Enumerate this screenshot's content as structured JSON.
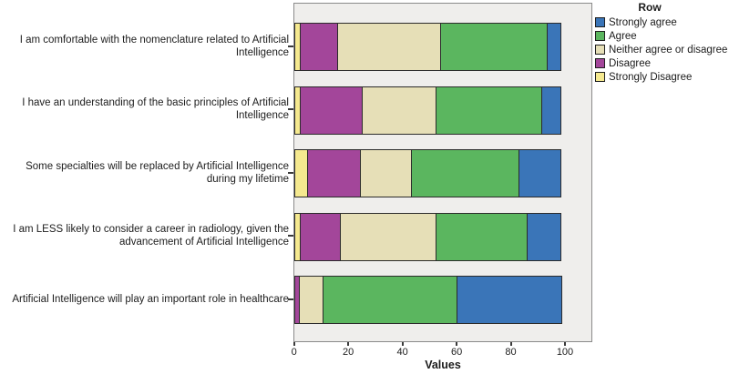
{
  "legend": {
    "title": "Row",
    "items": [
      {
        "label": "Strongly agree",
        "color": "#3a75b8"
      },
      {
        "label": "Agree",
        "color": "#5bb65f"
      },
      {
        "label": "Neither agree or disagree",
        "color": "#e6dfb7"
      },
      {
        "label": "Disagree",
        "color": "#a3469a"
      },
      {
        "label": "Strongly Disagree",
        "color": "#f5e98f"
      }
    ]
  },
  "axis": {
    "xlabel": "Values"
  },
  "chart_data": {
    "type": "bar",
    "orientation": "horizontal",
    "stacked": true,
    "units": "percent",
    "title": "",
    "xlabel": "Values",
    "xlim": [
      0,
      110
    ],
    "xticks": [
      0,
      20,
      40,
      60,
      80,
      100
    ],
    "grid": false,
    "legend_position": "top-right",
    "legend_title": "Row",
    "plot_background": "#efeeec",
    "categories": [
      "I am comfortable with the nomenclature related to Artificial Intelligence",
      "I have an understanding of the basic principles of Artificial Intelligence",
      "Some specialties will be replaced by Artificial Intelligence during my lifetime",
      "I am LESS likely to consider a career in radiology, given the advancement of Artificial Intelligence",
      "Artificial Intelligence will play an important role in healthcare"
    ],
    "category_lines": [
      [
        "I am comfortable with the nomenclature related to Artificial",
        "Intelligence"
      ],
      [
        "I have an understanding of the basic principles of Artificial",
        "Intelligence"
      ],
      [
        "Some specialties will be replaced by Artificial Intelligence",
        "during my lifetime"
      ],
      [
        "I am LESS likely to consider a career in radiology, given the",
        "advancement of Artificial Intelligence"
      ],
      [
        "Artificial Intelligence will play an important role in healthcare"
      ]
    ],
    "series": [
      {
        "name": "Strongly Disagree",
        "color": "#f5e98f",
        "values": [
          2.5,
          2.5,
          5,
          2.5,
          0
        ]
      },
      {
        "name": "Disagree",
        "color": "#a3469a",
        "values": [
          14,
          23,
          20,
          15,
          2
        ]
      },
      {
        "name": "Neither agree or disagree",
        "color": "#e6dfb7",
        "values": [
          38.5,
          27.5,
          19,
          35.5,
          9
        ]
      },
      {
        "name": "Agree",
        "color": "#5bb65f",
        "values": [
          39.5,
          39.5,
          40,
          34,
          50
        ]
      },
      {
        "name": "Strongly agree",
        "color": "#3a75b8",
        "values": [
          5.5,
          7.5,
          16,
          13,
          39
        ]
      }
    ]
  }
}
